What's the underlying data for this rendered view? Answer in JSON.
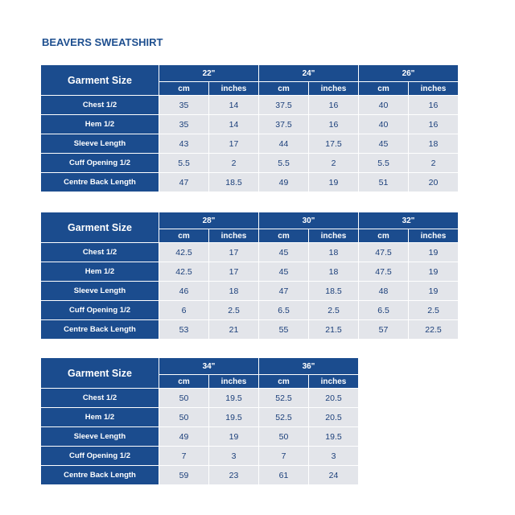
{
  "title": "BEAVERS SWEATSHIRT",
  "tables": [
    {
      "corner": "Garment Size",
      "sizes": [
        "22\"",
        "24\"",
        "26\""
      ],
      "units": [
        "cm",
        "inches"
      ],
      "rows": [
        {
          "label": "Chest 1/2",
          "values": [
            "35",
            "14",
            "37.5",
            "16",
            "40",
            "16"
          ]
        },
        {
          "label": "Hem 1/2",
          "values": [
            "35",
            "14",
            "37.5",
            "16",
            "40",
            "16"
          ]
        },
        {
          "label": "Sleeve Length",
          "values": [
            "43",
            "17",
            "44",
            "17.5",
            "45",
            "18"
          ]
        },
        {
          "label": "Cuff Opening 1/2",
          "values": [
            "5.5",
            "2",
            "5.5",
            "2",
            "5.5",
            "2"
          ]
        },
        {
          "label": "Centre Back Length",
          "values": [
            "47",
            "18.5",
            "49",
            "19",
            "51",
            "20"
          ]
        }
      ]
    },
    {
      "corner": "Garment Size",
      "sizes": [
        "28\"",
        "30\"",
        "32\""
      ],
      "units": [
        "cm",
        "inches"
      ],
      "rows": [
        {
          "label": "Chest 1/2",
          "values": [
            "42.5",
            "17",
            "45",
            "18",
            "47.5",
            "19"
          ]
        },
        {
          "label": "Hem 1/2",
          "values": [
            "42.5",
            "17",
            "45",
            "18",
            "47.5",
            "19"
          ]
        },
        {
          "label": "Sleeve Length",
          "values": [
            "46",
            "18",
            "47",
            "18.5",
            "48",
            "19"
          ]
        },
        {
          "label": "Cuff Opening 1/2",
          "values": [
            "6",
            "2.5",
            "6.5",
            "2.5",
            "6.5",
            "2.5"
          ]
        },
        {
          "label": "Centre Back Length",
          "values": [
            "53",
            "21",
            "55",
            "21.5",
            "57",
            "22.5"
          ]
        }
      ]
    },
    {
      "corner": "Garment Size",
      "sizes": [
        "34\"",
        "36\""
      ],
      "units": [
        "cm",
        "inches"
      ],
      "rows": [
        {
          "label": "Chest 1/2",
          "values": [
            "50",
            "19.5",
            "52.5",
            "20.5"
          ]
        },
        {
          "label": "Hem 1/2",
          "values": [
            "50",
            "19.5",
            "52.5",
            "20.5"
          ]
        },
        {
          "label": "Sleeve Length",
          "values": [
            "49",
            "19",
            "50",
            "19.5"
          ]
        },
        {
          "label": "Cuff Opening 1/2",
          "values": [
            "7",
            "3",
            "7",
            "3"
          ]
        },
        {
          "label": "Centre Back Length",
          "values": [
            "59",
            "23",
            "61",
            "24"
          ]
        }
      ]
    }
  ]
}
